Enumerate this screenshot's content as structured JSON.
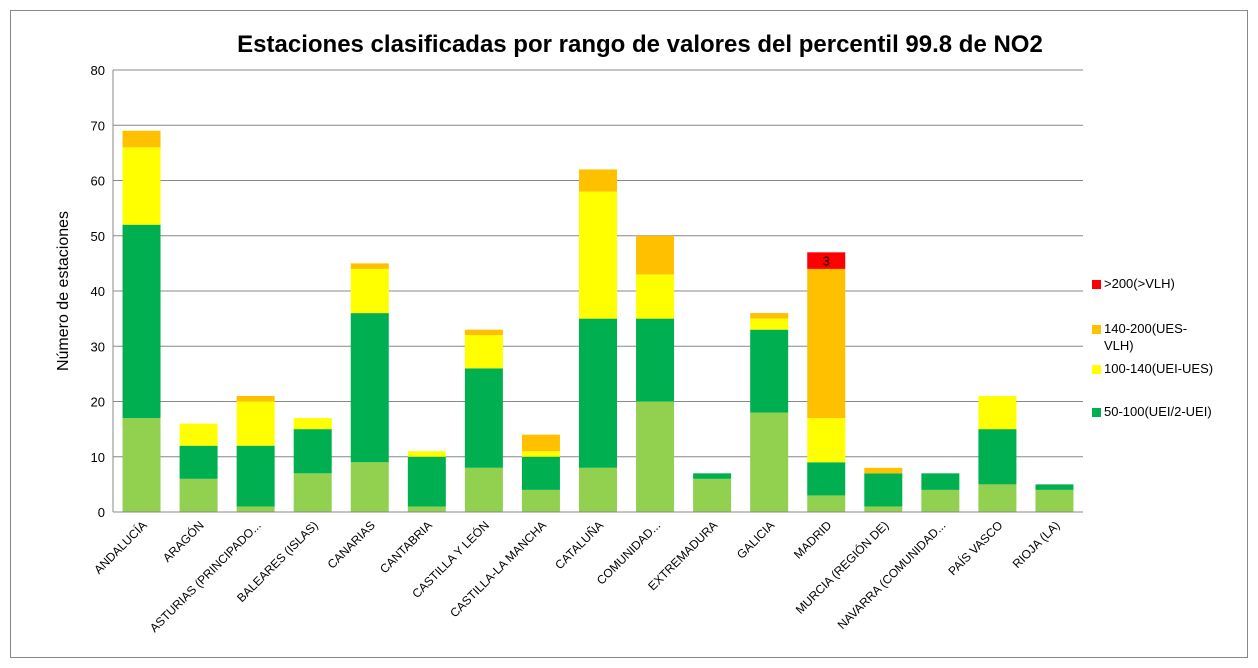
{
  "chart_data": {
    "type": "bar",
    "stacked": true,
    "title": "Estaciones clasificadas por rango de valores del percentil 99.8 de NO2",
    "y_label": "Número de estaciones",
    "categories": [
      "ANDALUCÍA",
      "ARAGÓN",
      "ASTURIAS (PRINCIPADO...",
      "BALEARES (ISLAS)",
      "CANARIAS",
      "CANTABRIA",
      "CASTILLA Y LEÓN",
      "CASTILLA-LA MANCHA",
      "CATALUÑA",
      "COMUNIDAD...",
      "EXTREMADURA",
      "GALICIA",
      "MADRID",
      "MURCIA (REGIÓN DE)",
      "NAVARRA (COMUNIDAD...",
      "PAÍS VASCO",
      "RIOJA (LA)"
    ],
    "series": [
      {
        "name": null,
        "color": "#92d050",
        "values": [
          17,
          6,
          1,
          7,
          9,
          1,
          8,
          4,
          8,
          20,
          6,
          18,
          3,
          1,
          4,
          5,
          4
        ]
      },
      {
        "name": "50-100(UEI/2-UEI)",
        "color": "#00b050",
        "values": [
          35,
          6,
          11,
          8,
          27,
          9,
          18,
          6,
          27,
          15,
          1,
          15,
          6,
          6,
          3,
          10,
          1
        ]
      },
      {
        "name": "100-140(UEI-UES)",
        "color": "#ffff00",
        "values": [
          14,
          4,
          8,
          2,
          8,
          1,
          6,
          1,
          23,
          8,
          0,
          2,
          8,
          0,
          0,
          6,
          0
        ]
      },
      {
        "name": "140-200(UES-VLH)",
        "color": "#ffc000",
        "values": [
          3,
          0,
          1,
          0,
          1,
          0,
          1,
          3,
          4,
          7,
          0,
          1,
          27,
          1,
          0,
          0,
          0
        ]
      },
      {
        "name": ">200(>VLH)",
        "color": "#ff0000",
        "values": [
          0,
          0,
          0,
          0,
          0,
          0,
          0,
          0,
          0,
          0,
          0,
          0,
          3,
          0,
          0,
          0,
          0
        ],
        "value_labels": [
          null,
          null,
          null,
          null,
          null,
          null,
          null,
          null,
          null,
          null,
          null,
          null,
          "3",
          null,
          null,
          null,
          null
        ]
      }
    ],
    "ylim": [
      0,
      80
    ],
    "yticks": [
      0,
      10,
      20,
      30,
      40,
      50,
      60,
      70,
      80
    ],
    "grid": true,
    "legend": "right"
  }
}
